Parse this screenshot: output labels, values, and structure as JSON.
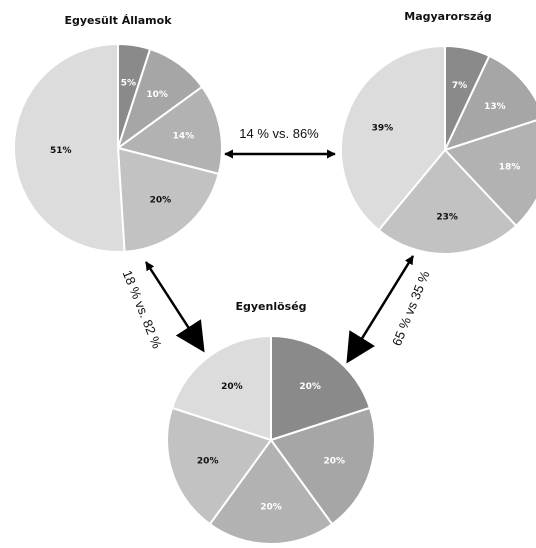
{
  "chart_data": [
    {
      "type": "pie",
      "title": "Egyesült Államok",
      "values": [
        5,
        10,
        14,
        20,
        51
      ],
      "labels": [
        "5%",
        "10%",
        "14%",
        "20%",
        "51%"
      ],
      "colors": [
        "#8a8a8a",
        "#a6a6a6",
        "#b2b2b2",
        "#c2c2c2",
        "#dcdcdc"
      ],
      "label_colors": [
        "#ffffff",
        "#ffffff",
        "#ffffff",
        "#111111",
        "#111111"
      ]
    },
    {
      "type": "pie",
      "title": "Magyarország",
      "values": [
        7,
        13,
        18,
        23,
        39
      ],
      "labels": [
        "7%",
        "13%",
        "18%",
        "23%",
        "39%"
      ],
      "colors": [
        "#8a8a8a",
        "#a6a6a6",
        "#b2b2b2",
        "#c2c2c2",
        "#dcdcdc"
      ],
      "label_colors": [
        "#ffffff",
        "#ffffff",
        "#ffffff",
        "#111111",
        "#111111"
      ]
    },
    {
      "type": "pie",
      "title": "Egyenlöség",
      "values": [
        20,
        20,
        20,
        20,
        20
      ],
      "labels": [
        "20%",
        "20%",
        "20%",
        "20%",
        "20%"
      ],
      "colors": [
        "#8a8a8a",
        "#a6a6a6",
        "#b2b2b2",
        "#c2c2c2",
        "#dcdcdc"
      ],
      "label_colors": [
        "#ffffff",
        "#ffffff",
        "#ffffff",
        "#111111",
        "#111111"
      ]
    }
  ],
  "comparisons": {
    "us_hungary": "14 % vs. 86%",
    "us_equality": "18 % vs. 82 %",
    "hungary_equality": "65 % vs 35 %"
  }
}
